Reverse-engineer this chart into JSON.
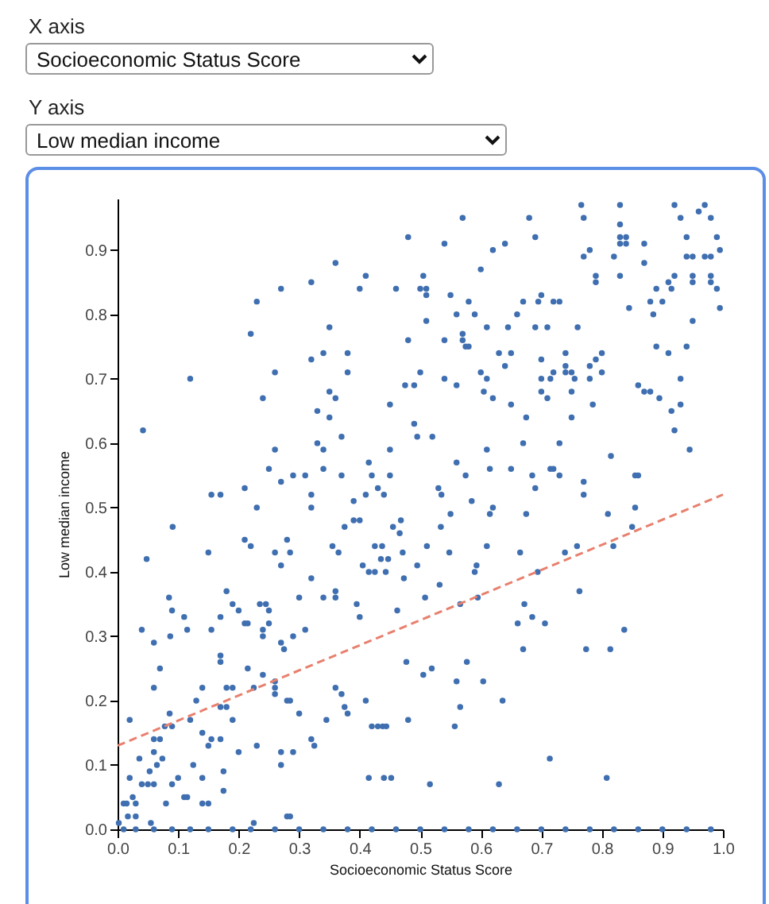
{
  "chart_data": {
    "type": "scatter",
    "xlabel": "Socioeconomic Status Score",
    "ylabel": "Low median income",
    "annotations": [
      "X axis",
      "Y axis"
    ],
    "xlim": [
      0,
      1
    ],
    "ylim": [
      0,
      0.98
    ],
    "xticks": [
      {
        "value": 0,
        "label": "0.0"
      },
      0.1,
      0.2,
      0.3,
      0.4,
      0.5,
      0.6,
      0.7,
      0.8,
      0.9,
      {
        "value": 1,
        "label": "1.0"
      }
    ],
    "yticks": [
      {
        "value": 0,
        "label": "0.0"
      },
      0.1,
      0.2,
      0.3,
      0.4,
      0.5,
      0.6,
      0.7,
      0.8,
      0.9
    ],
    "marker": "circle",
    "series": [
      {
        "color": "#3f6fb0",
        "x": [
          0.042,
          0.12,
          0.22,
          0.23,
          0.27,
          0.32,
          0.36,
          0.41,
          0.4,
          0.26,
          0.24,
          0.35,
          0.32,
          0.34,
          0.38,
          0.38,
          0.35,
          0.36,
          0.33,
          0.35,
          0.26,
          0.33,
          0.34,
          0.37,
          0.25,
          0.29,
          0.27,
          0.31,
          0.34,
          0.37,
          0.155,
          0.17,
          0.21,
          0.23,
          0.32,
          0.32,
          0.39,
          0.41,
          0.45,
          0.45,
          0.45,
          0.42,
          0.43,
          0.44,
          0.415,
          0.766,
          0.83,
          0.92,
          0.97,
          0.77,
          0.57,
          0.68,
          0.48,
          0.54,
          0.69,
          0.62,
          0.64,
          0.83,
          0.83,
          0.84,
          0.83,
          0.84,
          0.78,
          0.77,
          0.87,
          0.82,
          0.87,
          0.93,
          0.96,
          0.98,
          0.94,
          0.99,
          0.94,
          0.95,
          0.97,
          0.98,
          0.995,
          0.95,
          0.95,
          0.98,
          0.6,
          0.505,
          0.79,
          0.83,
          0.92,
          0.79,
          0.91,
          0.98,
          0.99,
          0.46,
          0.5,
          0.51,
          0.51,
          0.55,
          0.89,
          0.915,
          0.7,
          0.695,
          0.67,
          0.72,
          0.73,
          0.58,
          0.88,
          0.9,
          0.845,
          0.51,
          0.56,
          0.59,
          0.66,
          0.885,
          0.995,
          0.95,
          0.57,
          0.57,
          0.575,
          0.58,
          0.61,
          0.645,
          0.69,
          0.71,
          0.76,
          0.48,
          0.54,
          0.63,
          0.65,
          0.74,
          0.7,
          0.8,
          0.79,
          0.89,
          0.91,
          0.94,
          0.64,
          0.74,
          0.78,
          0.5,
          0.6,
          0.72,
          0.74,
          0.75,
          0.8,
          0.54,
          0.61,
          0.7,
          0.715,
          0.755,
          0.78,
          0.475,
          0.49,
          0.56,
          0.86,
          0.93,
          0.605,
          0.7,
          0.75,
          0.87,
          0.88,
          0.895,
          0.62,
          0.71,
          0.65,
          0.785,
          0.93,
          0.915,
          0.675,
          0.75,
          0.92,
          0.67,
          0.815,
          0.945,
          0.73,
          0.715,
          0.72,
          0.73,
          0.685,
          0.69,
          0.77,
          0.77,
          0.855,
          0.86,
          0.855,
          0.81,
          0.675,
          0.49,
          0.495,
          0.52,
          0.61,
          0.56,
          0.615,
          0.65,
          0.575,
          0.53,
          0.535,
          0.585,
          0.55,
          0.62,
          0.615,
          0.091,
          0.048,
          0.15,
          0.21,
          0.22,
          0.26,
          0.27,
          0.285,
          0.28,
          0.32,
          0.085,
          0.09,
          0.11,
          0.04,
          0.06,
          0.07,
          0.087,
          0.115,
          0.18,
          0.19,
          0.2,
          0.17,
          0.155,
          0.21,
          0.215,
          0.235,
          0.245,
          0.25,
          0.25,
          0.24,
          0.24,
          0.27,
          0.275,
          0.3,
          0.29,
          0.31,
          0.06,
          0.17,
          0.17,
          0.14,
          0.18,
          0.19,
          0.225,
          0.215,
          0.24,
          0.26,
          0.26,
          0.26,
          0.28,
          0.285,
          0.3,
          0.17,
          0.18,
          0.19,
          0.2,
          0.23,
          0.155,
          0.15,
          0.17,
          0.14,
          0.13,
          0.12,
          0.086,
          0.06,
          0.07,
          0.09,
          0.078,
          0.06,
          0.036,
          0.074,
          0.02,
          0.065,
          0.053,
          0.04,
          0.05,
          0.06,
          0.02,
          0.1,
          0.09,
          0.11,
          0.115,
          0.125,
          0.14,
          0.14,
          0.15,
          0.08,
          0.025,
          0.03,
          0.01,
          0.015,
          0.017,
          0.03,
          0.002,
          0.055,
          0.175,
          0.175,
          0.27,
          0.29,
          0.27,
          0.28,
          0.285,
          0.32,
          0.325,
          0.34,
          0.36,
          0.37,
          0.345,
          0.375,
          0.38,
          0.355,
          0.365,
          0.36,
          0.36,
          0.395,
          0.4,
          0.375,
          0.39,
          0.4,
          0.405,
          0.415,
          0.425,
          0.425,
          0.435,
          0.41,
          0.42,
          0.43,
          0.415,
          0.44,
          0.225,
          0.455,
          0.466,
          0.468,
          0.534,
          0.85,
          0.437,
          0.447,
          0.443,
          0.471,
          0.473,
          0.495,
          0.511,
          0.548,
          0.532,
          0.61,
          0.59,
          0.593,
          0.665,
          0.694,
          0.739,
          0.759,
          0.819,
          0.763,
          0.508,
          0.566,
          0.595,
          0.462,
          0.672,
          0.685,
          0.661,
          0.706,
          0.837,
          0.67,
          0.774,
          0.814,
          0.477,
          0.519,
          0.505,
          0.577,
          0.56,
          0.604,
          0.566,
          0.636,
          0.438,
          0.444,
          0.48,
          0.557,
          0.714,
          0.452,
          0.516,
          0.63,
          0.808,
          0.01,
          0.03,
          0.06,
          0.09,
          0.12,
          0.15,
          0.19,
          0.22,
          0.26,
          0.3,
          0.34,
          0.38,
          0.42,
          0.46,
          0.5,
          0.54,
          0.58,
          0.62,
          0.66,
          0.7,
          0.74,
          0.78,
          0.82,
          0.86,
          0.9,
          0.94,
          0.98
        ],
        "values": [
          0.62,
          0.7,
          0.77,
          0.82,
          0.84,
          0.85,
          0.88,
          0.86,
          0.84,
          0.71,
          0.67,
          0.78,
          0.73,
          0.74,
          0.74,
          0.71,
          0.68,
          0.67,
          0.65,
          0.64,
          0.59,
          0.6,
          0.59,
          0.61,
          0.56,
          0.55,
          0.54,
          0.55,
          0.56,
          0.55,
          0.52,
          0.52,
          0.53,
          0.5,
          0.52,
          0.5,
          0.51,
          0.52,
          0.66,
          0.59,
          0.55,
          0.55,
          0.53,
          0.52,
          0.57,
          0.97,
          0.97,
          0.97,
          0.97,
          0.95,
          0.95,
          0.95,
          0.92,
          0.91,
          0.92,
          0.9,
          0.91,
          0.94,
          0.92,
          0.92,
          0.91,
          0.91,
          0.9,
          0.89,
          0.91,
          0.89,
          0.88,
          0.95,
          0.96,
          0.95,
          0.92,
          0.92,
          0.89,
          0.89,
          0.89,
          0.89,
          0.9,
          0.86,
          0.85,
          0.86,
          0.87,
          0.86,
          0.86,
          0.86,
          0.86,
          0.85,
          0.85,
          0.85,
          0.84,
          0.84,
          0.84,
          0.84,
          0.83,
          0.83,
          0.84,
          0.84,
          0.83,
          0.82,
          0.82,
          0.82,
          0.82,
          0.82,
          0.82,
          0.82,
          0.81,
          0.79,
          0.8,
          0.8,
          0.8,
          0.8,
          0.81,
          0.79,
          0.77,
          0.76,
          0.75,
          0.75,
          0.78,
          0.78,
          0.78,
          0.78,
          0.78,
          0.76,
          0.76,
          0.74,
          0.74,
          0.74,
          0.73,
          0.74,
          0.73,
          0.75,
          0.74,
          0.75,
          0.72,
          0.72,
          0.72,
          0.71,
          0.71,
          0.71,
          0.71,
          0.71,
          0.71,
          0.7,
          0.7,
          0.7,
          0.7,
          0.7,
          0.7,
          0.69,
          0.69,
          0.69,
          0.69,
          0.7,
          0.68,
          0.68,
          0.68,
          0.68,
          0.68,
          0.67,
          0.67,
          0.67,
          0.66,
          0.66,
          0.66,
          0.65,
          0.64,
          0.64,
          0.62,
          0.6,
          0.58,
          0.59,
          0.6,
          0.56,
          0.56,
          0.55,
          0.55,
          0.53,
          0.54,
          0.52,
          0.55,
          0.55,
          0.5,
          0.49,
          0.49,
          0.63,
          0.61,
          0.61,
          0.59,
          0.57,
          0.56,
          0.56,
          0.55,
          0.53,
          0.52,
          0.51,
          0.49,
          0.5,
          0.49,
          0.47,
          0.42,
          0.43,
          0.45,
          0.44,
          0.43,
          0.41,
          0.43,
          0.45,
          0.39,
          0.36,
          0.34,
          0.33,
          0.31,
          0.29,
          0.25,
          0.3,
          0.31,
          0.37,
          0.35,
          0.34,
          0.33,
          0.31,
          0.32,
          0.32,
          0.35,
          0.35,
          0.34,
          0.32,
          0.31,
          0.3,
          0.29,
          0.28,
          0.36,
          0.3,
          0.31,
          0.22,
          0.27,
          0.26,
          0.22,
          0.22,
          0.22,
          0.22,
          0.25,
          0.24,
          0.23,
          0.21,
          0.22,
          0.2,
          0.2,
          0.18,
          0.19,
          0.19,
          0.17,
          0.12,
          0.13,
          0.14,
          0.13,
          0.14,
          0.15,
          0.2,
          0.17,
          0.18,
          0.14,
          0.14,
          0.16,
          0.16,
          0.12,
          0.11,
          0.11,
          0.17,
          0.1,
          0.09,
          0.07,
          0.07,
          0.07,
          0.08,
          0.08,
          0.07,
          0.05,
          0.05,
          0.1,
          0.08,
          0.04,
          0.04,
          0.04,
          0.05,
          0.04,
          0.04,
          0.04,
          0.02,
          0.02,
          0.01,
          0.01,
          0.09,
          0.06,
          0.12,
          0.12,
          0.1,
          0.02,
          0.02,
          0.14,
          0.13,
          0.36,
          0.22,
          0.21,
          0.17,
          0.19,
          0.18,
          0.44,
          0.43,
          0.37,
          0.36,
          0.35,
          0.33,
          0.47,
          0.48,
          0.48,
          0.41,
          0.4,
          0.4,
          0.44,
          0.42,
          0.2,
          0.16,
          0.16,
          0.08,
          0.08,
          0.01,
          0.47,
          0.46,
          0.48,
          0.47,
          0.47,
          0.44,
          0.42,
          0.4,
          0.43,
          0.39,
          0.41,
          0.44,
          0.43,
          0.38,
          0.44,
          0.4,
          0.41,
          0.43,
          0.4,
          0.43,
          0.44,
          0.44,
          0.37,
          0.36,
          0.35,
          0.36,
          0.34,
          0.35,
          0.33,
          0.32,
          0.32,
          0.31,
          0.28,
          0.28,
          0.28,
          0.26,
          0.25,
          0.24,
          0.26,
          0.23,
          0.23,
          0.19,
          0.2,
          0.16,
          0.16,
          0.17,
          0.16,
          0.11,
          0.08,
          0.07,
          0.07,
          0.08,
          0,
          0,
          0,
          0,
          0,
          0,
          0,
          0,
          0,
          0,
          0,
          0,
          0,
          0,
          0,
          0,
          0,
          0,
          0,
          0,
          0,
          0,
          0,
          0,
          0,
          0,
          0
        ]
      },
      {
        "type": "line",
        "color": "#e8806e",
        "line_style": "dashed",
        "marker": "none",
        "x": [
          0,
          1
        ],
        "values": [
          0.13,
          0.52
        ]
      }
    ]
  }
}
